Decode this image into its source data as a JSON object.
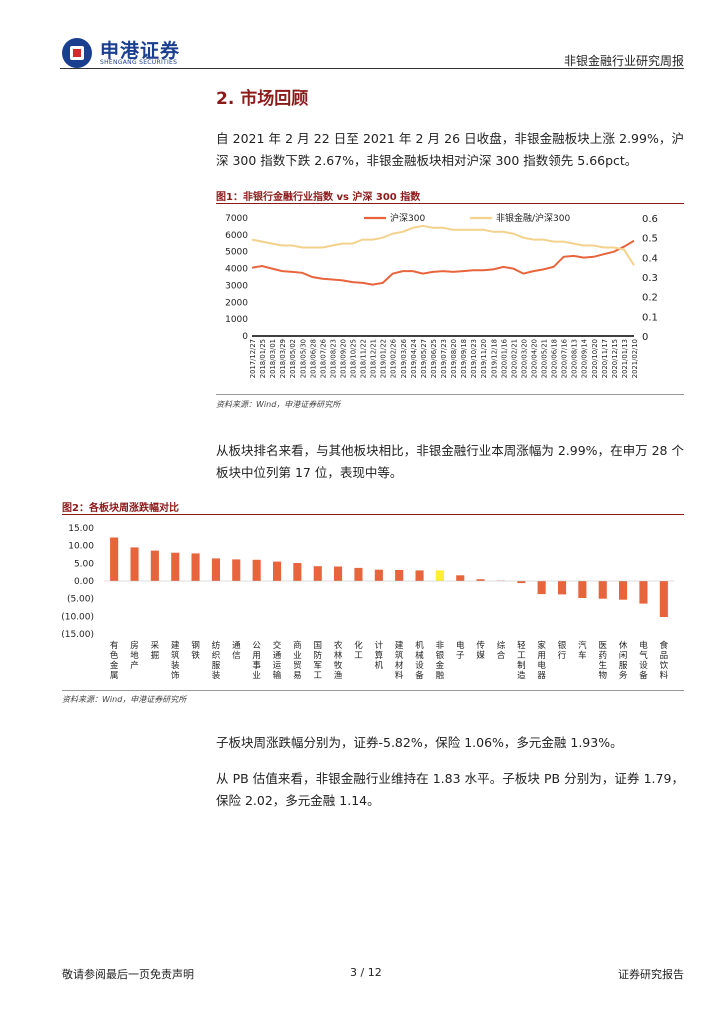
{
  "header": {
    "brand_cn": "申港证券",
    "brand_en": "SHENGANG SECURITIES",
    "report_title": "非银金融行业研究周报"
  },
  "section": {
    "title": "2. 市场回顾"
  },
  "paragraphs": {
    "p1": "自 2021 年 2 月 22 日至 2021 年 2 月 26 日收盘，非银金融板块上涨 2.99%，沪深 300 指数下跌 2.67%，非银金融板块相对沪深 300 指数领先 5.66pct。",
    "p2": "从板块排名来看，与其他板块相比，非银金融行业本周涨幅为 2.99%，在申万 28 个板块中位列第 17 位，表现中等。",
    "p3": "子板块周涨跌幅分别为，证券-5.82%，保险 1.06%，多元金融 1.93%。",
    "p4": "从 PB 估值来看，非银金融行业维持在 1.83 水平。子板块 PB 分别为，证券 1.79，保险 2.02，多元金融 1.14。"
  },
  "figures": {
    "fig1_title": "图1：非银行金融行业指数 vs 沪深 300 指数",
    "fig1_source": "资料来源：Wind，申港证券研究所",
    "fig2_title": "图2：各板块周涨跌幅对比",
    "fig2_source": "资料来源：Wind，申港证券研究所"
  },
  "footer": {
    "left": "敬请参阅最后一页免责声明",
    "page": "3 / 12",
    "right": "证券研究报告"
  },
  "chart_data": [
    {
      "type": "line",
      "title": "非银行金融行业指数 vs 沪深 300 指数",
      "x": [
        "2017/12/27",
        "2018/01/25",
        "2018/03/01",
        "2018/03/29",
        "2018/05/02",
        "2018/05/30",
        "2018/06/28",
        "2018/07/26",
        "2018/08/23",
        "2018/09/20",
        "2018/10/25",
        "2018/11/22",
        "2018/12/21",
        "2019/01/22",
        "2019/02/26",
        "2019/03/26",
        "2019/04/24",
        "2019/05/27",
        "2019/06/25",
        "2019/07/23",
        "2019/08/20",
        "2019/09/18",
        "2019/10/23",
        "2019/11/20",
        "2019/12/18",
        "2020/01/16",
        "2020/02/21",
        "2020/03/20",
        "2020/04/20",
        "2020/05/21",
        "2020/06/18",
        "2020/07/16",
        "2020/08/13",
        "2020/09/14",
        "2020/10/20",
        "2020/11/17",
        "2020/12/15",
        "2021/01/13",
        "2021/02/10"
      ],
      "series": [
        {
          "name": "沪深300",
          "axis": "left",
          "color": "#e8643c",
          "values": [
            4050,
            4150,
            4000,
            3850,
            3800,
            3750,
            3500,
            3400,
            3350,
            3300,
            3200,
            3150,
            3050,
            3150,
            3700,
            3850,
            3850,
            3700,
            3800,
            3850,
            3800,
            3850,
            3900,
            3900,
            3950,
            4100,
            4000,
            3700,
            3850,
            3950,
            4100,
            4700,
            4750,
            4650,
            4700,
            4850,
            5000,
            5300,
            5650
          ]
        },
        {
          "name": "非银金融/沪深300",
          "axis": "right",
          "color": "#f2d28c",
          "values": [
            0.49,
            0.48,
            0.47,
            0.46,
            0.46,
            0.45,
            0.45,
            0.45,
            0.46,
            0.47,
            0.47,
            0.49,
            0.49,
            0.5,
            0.52,
            0.53,
            0.55,
            0.56,
            0.55,
            0.55,
            0.54,
            0.54,
            0.54,
            0.54,
            0.53,
            0.53,
            0.52,
            0.5,
            0.49,
            0.49,
            0.48,
            0.48,
            0.47,
            0.46,
            0.46,
            0.45,
            0.45,
            0.44,
            0.36
          ]
        }
      ],
      "ylim_left": [
        0,
        7000
      ],
      "yticks_left": [
        "7000",
        "6000",
        "5000",
        "4000",
        "3000",
        "2000",
        "1000",
        "0"
      ],
      "ylim_right": [
        0,
        0.6
      ],
      "yticks_right": [
        "0.6",
        "0.5",
        "0.4",
        "0.3",
        "0.2",
        "0.1",
        "0"
      ]
    },
    {
      "type": "bar",
      "title": "各板块周涨跌幅对比",
      "categories": [
        "有色金属",
        "房地产",
        "采掘",
        "建筑装饰",
        "钢铁",
        "纺织服装",
        "通信",
        "公用事业",
        "交通运输",
        "商业贸易",
        "国防军工",
        "农林牧渔",
        "化工",
        "计算机",
        "建筑材料",
        "机械设备",
        "非银金融",
        "电子",
        "传媒",
        "综合",
        "轻工制造",
        "家用电器",
        "银行",
        "汽车",
        "医药生物",
        "休闲服务",
        "电气设备",
        "食品饮料"
      ],
      "values": [
        12.3,
        9.5,
        8.6,
        8.0,
        7.8,
        6.4,
        6.1,
        6.0,
        5.5,
        5.1,
        4.2,
        4.1,
        3.7,
        3.2,
        3.1,
        2.99,
        3.0,
        1.6,
        0.5,
        0.1,
        -0.6,
        -3.7,
        -3.8,
        -4.8,
        -5.0,
        -5.3,
        -6.4,
        -10.2
      ],
      "highlight_category": "非银金融",
      "bar_color": "#e8643c",
      "highlight_color": "#ffee33",
      "ylim": [
        -15,
        15
      ],
      "yticks": [
        "15.00",
        "10.00",
        "5.00",
        "0.00",
        "(5.00)",
        "(10.00)",
        "(15.00)"
      ]
    }
  ]
}
